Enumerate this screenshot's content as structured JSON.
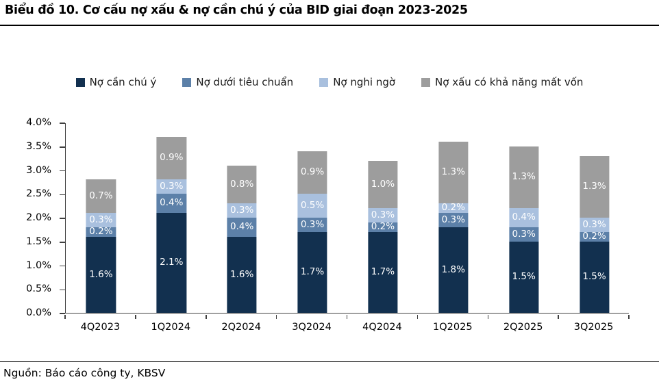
{
  "title": "Biểu đồ 10. Cơ cấu nợ xấu & nợ cần chú ý của BID giai đoạn 2023-2025",
  "source": "Nguồn: Báo cáo công ty, KBSV",
  "chart_data": {
    "type": "bar",
    "stacked": true,
    "title": "Biểu đồ 10. Cơ cấu nợ xấu & nợ cần chú ý của BID giai đoạn 2023-2025",
    "categories": [
      "4Q2023",
      "1Q2024",
      "2Q2024",
      "3Q2024",
      "4Q2024",
      "1Q2025",
      "2Q2025",
      "3Q2025"
    ],
    "series": [
      {
        "name": "Nợ cần chú ý",
        "color": "#12304F",
        "values": [
          1.6,
          2.1,
          1.6,
          1.7,
          1.7,
          1.8,
          1.5,
          1.5
        ]
      },
      {
        "name": "Nợ dưới tiêu chuẩn",
        "color": "#5C80A8",
        "values": [
          0.2,
          0.4,
          0.4,
          0.3,
          0.2,
          0.3,
          0.3,
          0.2
        ]
      },
      {
        "name": "Nợ nghi ngờ",
        "color": "#A9C0DE",
        "values": [
          0.3,
          0.3,
          0.3,
          0.5,
          0.3,
          0.2,
          0.4,
          0.3
        ]
      },
      {
        "name": "Nợ xấu có khả năng mất vốn",
        "color": "#9D9D9D",
        "values": [
          0.7,
          0.9,
          0.8,
          0.9,
          1.0,
          1.3,
          1.3,
          1.3
        ]
      }
    ],
    "xlabel": "",
    "ylabel": "",
    "ylim": [
      0,
      4.0
    ],
    "ytick_step": 0.5,
    "yticks": [
      "0.0%",
      "0.5%",
      "1.0%",
      "1.5%",
      "2.0%",
      "2.5%",
      "3.0%",
      "3.5%",
      "4.0%"
    ],
    "grid": false,
    "legend_position": "top",
    "data_labels": "one decimal percent, white, centered inside each segment",
    "colors": {
      "axis": "#404040",
      "label_text": "#ffffff",
      "title_text": "#000000"
    }
  }
}
